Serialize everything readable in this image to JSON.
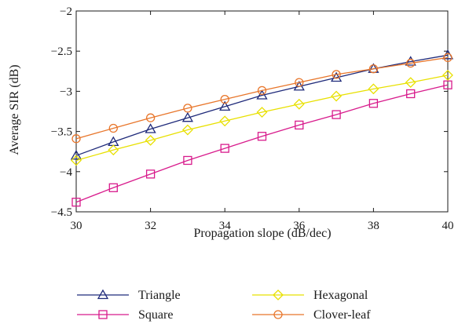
{
  "chart_data": {
    "type": "line",
    "xlabel": "Propagation slope (dB/dec)",
    "ylabel": "Average SIR (dB)",
    "xlim": [
      30,
      40
    ],
    "ylim": [
      -4.5,
      -2
    ],
    "x_ticks": [
      30,
      32,
      34,
      36,
      38,
      40
    ],
    "y_ticks": [
      -4.5,
      -4,
      -3.5,
      -3,
      -2.5,
      -2
    ],
    "y_tick_labels": [
      "−4.5",
      "−4",
      "−3.5",
      "−3",
      "−2.5",
      "−2"
    ],
    "grid": false,
    "legend_position": "below",
    "x": [
      30,
      31,
      32,
      33,
      34,
      35,
      36,
      37,
      38,
      39,
      40
    ],
    "series": [
      {
        "name": "Triangle",
        "color": "#1f2a7a",
        "marker": "triangle",
        "values": [
          -3.8,
          -3.63,
          -3.47,
          -3.33,
          -3.19,
          -3.05,
          -2.94,
          -2.83,
          -2.72,
          -2.63,
          -2.55
        ]
      },
      {
        "name": "Square",
        "color": "#d81b8c",
        "marker": "square",
        "values": [
          -4.38,
          -4.2,
          -4.03,
          -3.86,
          -3.71,
          -3.56,
          -3.42,
          -3.29,
          -3.15,
          -3.03,
          -2.92
        ]
      },
      {
        "name": "Hexagonal",
        "color": "#e8e000",
        "marker": "diamond",
        "values": [
          -3.86,
          -3.73,
          -3.61,
          -3.48,
          -3.37,
          -3.26,
          -3.16,
          -3.06,
          -2.97,
          -2.89,
          -2.8
        ]
      },
      {
        "name": "Clover-leaf",
        "color": "#e8762b",
        "marker": "circle",
        "values": [
          -3.59,
          -3.46,
          -3.33,
          -3.21,
          -3.1,
          -2.99,
          -2.89,
          -2.79,
          -2.72,
          -2.65,
          -2.58
        ]
      }
    ]
  }
}
